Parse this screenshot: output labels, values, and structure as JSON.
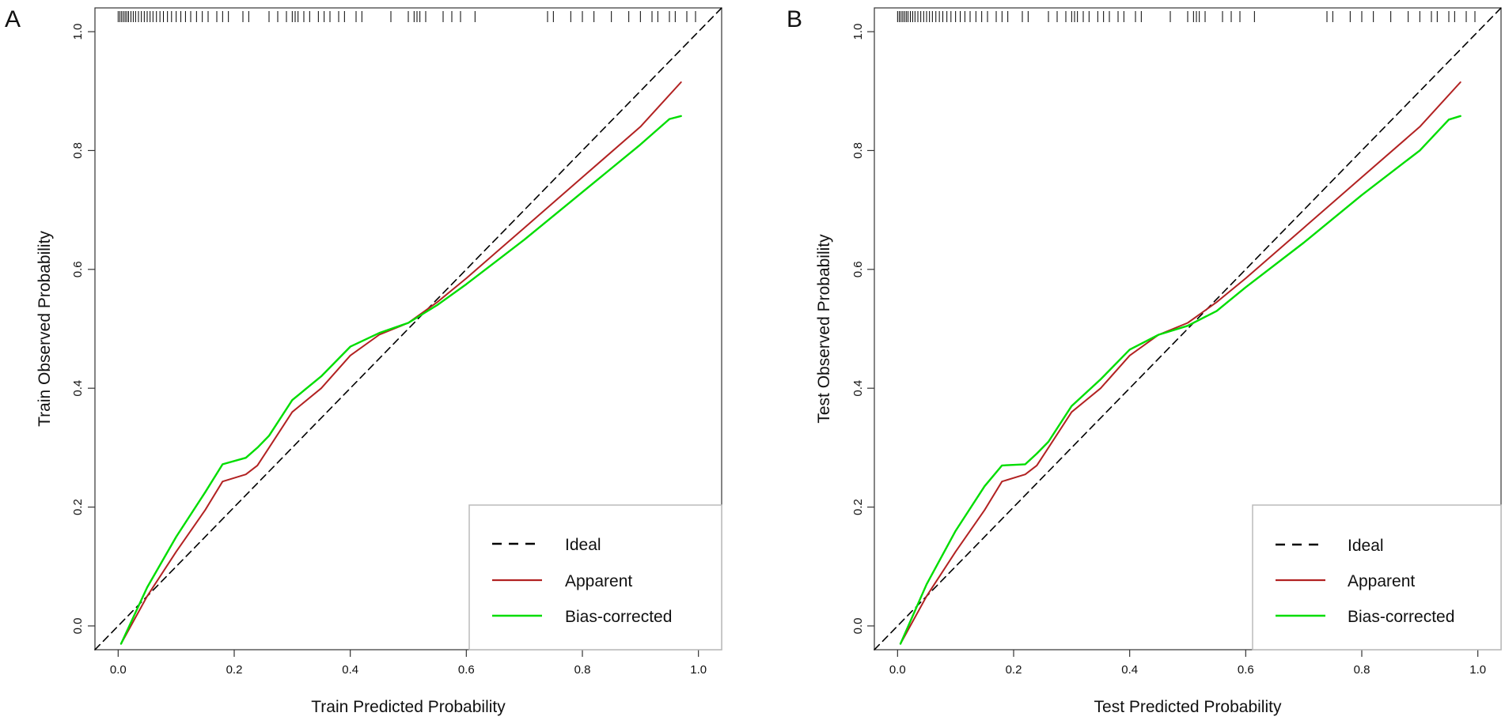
{
  "colors": {
    "ideal": "#000000",
    "apparent": "#b22222",
    "bias_corrected": "#00dd00",
    "axis": "#333333",
    "legend_border": "#bbbbbb"
  },
  "chart_data": [
    {
      "type": "line",
      "panel": "A",
      "xlabel": "Train Predicted Probability",
      "ylabel": "Train Observed Probability",
      "xlim": [
        -0.04,
        1.04
      ],
      "ylim": [
        -0.04,
        1.04
      ],
      "xticks": [
        "0.0",
        "0.2",
        "0.4",
        "0.6",
        "0.8",
        "1.0"
      ],
      "yticks": [
        "0.0",
        "0.2",
        "0.4",
        "0.6",
        "0.8",
        "1.0"
      ],
      "legend": {
        "position": "bottom-right",
        "entries": [
          "Ideal",
          "Apparent",
          "Bias-corrected"
        ]
      },
      "series": [
        {
          "name": "Ideal",
          "style": "dashed",
          "x": [
            -0.04,
            1.04
          ],
          "y": [
            -0.04,
            1.04
          ]
        },
        {
          "name": "Apparent",
          "style": "solid",
          "x": [
            0.005,
            0.05,
            0.1,
            0.15,
            0.18,
            0.22,
            0.24,
            0.26,
            0.3,
            0.35,
            0.4,
            0.45,
            0.5,
            0.55,
            0.6,
            0.7,
            0.8,
            0.9,
            0.97
          ],
          "y": [
            -0.03,
            0.05,
            0.125,
            0.195,
            0.243,
            0.255,
            0.27,
            0.3,
            0.36,
            0.4,
            0.455,
            0.49,
            0.51,
            0.545,
            0.585,
            0.67,
            0.755,
            0.84,
            0.915
          ]
        },
        {
          "name": "Bias-corrected",
          "style": "solid",
          "x": [
            0.005,
            0.05,
            0.1,
            0.15,
            0.18,
            0.22,
            0.24,
            0.26,
            0.3,
            0.35,
            0.4,
            0.45,
            0.5,
            0.55,
            0.6,
            0.7,
            0.8,
            0.9,
            0.95,
            0.97
          ],
          "y": [
            -0.03,
            0.065,
            0.15,
            0.225,
            0.272,
            0.283,
            0.3,
            0.32,
            0.38,
            0.42,
            0.47,
            0.493,
            0.51,
            0.54,
            0.575,
            0.65,
            0.73,
            0.81,
            0.853,
            0.858
          ]
        }
      ],
      "rug": [
        0.0,
        0.003,
        0.006,
        0.009,
        0.012,
        0.015,
        0.018,
        0.022,
        0.026,
        0.03,
        0.035,
        0.04,
        0.045,
        0.05,
        0.055,
        0.06,
        0.066,
        0.072,
        0.078,
        0.085,
        0.092,
        0.1,
        0.108,
        0.116,
        0.125,
        0.135,
        0.145,
        0.155,
        0.17,
        0.18,
        0.19,
        0.215,
        0.225,
        0.26,
        0.275,
        0.29,
        0.3,
        0.305,
        0.31,
        0.32,
        0.33,
        0.345,
        0.355,
        0.365,
        0.38,
        0.39,
        0.41,
        0.42,
        0.47,
        0.5,
        0.51,
        0.515,
        0.52,
        0.53,
        0.56,
        0.575,
        0.59,
        0.615,
        0.74,
        0.75,
        0.78,
        0.8,
        0.82,
        0.85,
        0.88,
        0.9,
        0.92,
        0.93,
        0.95,
        0.96,
        0.98,
        0.995
      ]
    },
    {
      "type": "line",
      "panel": "B",
      "xlabel": "Test Predicted Probability",
      "ylabel": "Test Observed Probability",
      "xlim": [
        -0.04,
        1.04
      ],
      "ylim": [
        -0.04,
        1.04
      ],
      "xticks": [
        "0.0",
        "0.2",
        "0.4",
        "0.6",
        "0.8",
        "1.0"
      ],
      "yticks": [
        "0.0",
        "0.2",
        "0.4",
        "0.6",
        "0.8",
        "1.0"
      ],
      "legend": {
        "position": "bottom-right",
        "entries": [
          "Ideal",
          "Apparent",
          "Bias-corrected"
        ]
      },
      "series": [
        {
          "name": "Ideal",
          "style": "dashed",
          "x": [
            -0.04,
            1.04
          ],
          "y": [
            -0.04,
            1.04
          ]
        },
        {
          "name": "Apparent",
          "style": "solid",
          "x": [
            0.005,
            0.05,
            0.1,
            0.15,
            0.18,
            0.22,
            0.24,
            0.26,
            0.3,
            0.35,
            0.4,
            0.45,
            0.5,
            0.55,
            0.6,
            0.7,
            0.8,
            0.9,
            0.97
          ],
          "y": [
            -0.03,
            0.05,
            0.125,
            0.195,
            0.243,
            0.255,
            0.27,
            0.3,
            0.36,
            0.4,
            0.455,
            0.49,
            0.51,
            0.545,
            0.585,
            0.67,
            0.755,
            0.84,
            0.915
          ]
        },
        {
          "name": "Bias-corrected",
          "style": "solid",
          "x": [
            0.005,
            0.05,
            0.1,
            0.15,
            0.18,
            0.22,
            0.24,
            0.26,
            0.3,
            0.35,
            0.4,
            0.45,
            0.5,
            0.55,
            0.6,
            0.7,
            0.8,
            0.9,
            0.95,
            0.97
          ],
          "y": [
            -0.03,
            0.07,
            0.16,
            0.235,
            0.27,
            0.272,
            0.29,
            0.31,
            0.37,
            0.415,
            0.465,
            0.49,
            0.505,
            0.53,
            0.57,
            0.645,
            0.725,
            0.8,
            0.852,
            0.858
          ]
        }
      ],
      "rug": [
        0.0,
        0.003,
        0.006,
        0.009,
        0.012,
        0.015,
        0.018,
        0.022,
        0.026,
        0.03,
        0.035,
        0.04,
        0.045,
        0.05,
        0.055,
        0.06,
        0.066,
        0.072,
        0.078,
        0.085,
        0.092,
        0.1,
        0.108,
        0.116,
        0.125,
        0.135,
        0.145,
        0.155,
        0.17,
        0.18,
        0.19,
        0.215,
        0.225,
        0.26,
        0.275,
        0.29,
        0.3,
        0.305,
        0.31,
        0.32,
        0.33,
        0.345,
        0.355,
        0.365,
        0.38,
        0.39,
        0.41,
        0.42,
        0.47,
        0.5,
        0.51,
        0.515,
        0.52,
        0.53,
        0.56,
        0.575,
        0.59,
        0.615,
        0.74,
        0.75,
        0.78,
        0.8,
        0.82,
        0.85,
        0.88,
        0.9,
        0.92,
        0.93,
        0.95,
        0.96,
        0.98,
        0.995
      ]
    }
  ]
}
